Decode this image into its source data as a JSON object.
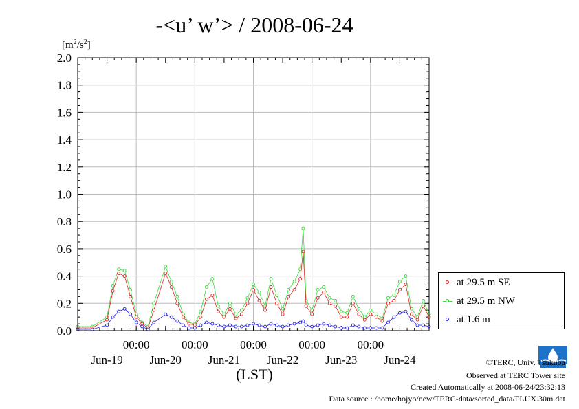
{
  "title": "-<u’ w’> / 2008-06-24",
  "y_unit_label_base": "[m",
  "y_unit_label_sup1": "2",
  "y_unit_label_mid": "/s",
  "y_unit_label_sup2": "2",
  "y_unit_label_end": "]",
  "xlabel": "(LST)",
  "credits": {
    "line1": "©TERC, Univ. Tsukuba",
    "line2": "Observed at TERC Tower site",
    "line3": "Created Automatically at 2008-06-24/23:32:13",
    "line4": "Data source : /home/hojyo/new/TERC-data/sorted_data/FLUX.30m.dat"
  },
  "legend": [
    {
      "label": "at 29.5 m SE",
      "color": "#e02020"
    },
    {
      "label": "at 29.5 m NW",
      "color": "#33dd33"
    },
    {
      "label": "at 1.6 m",
      "color": "#2020e0"
    }
  ],
  "chart_data": {
    "type": "line",
    "title": "-<u’ w’> / 2008-06-24",
    "xlabel": "(LST)",
    "ylabel": "[m2/s2]",
    "ylim": [
      0,
      2.0
    ],
    "yticks": [
      "0.0",
      "0.2",
      "0.4",
      "0.6",
      "0.8",
      "1.0",
      "1.2",
      "1.4",
      "1.6",
      "1.8",
      "2.0"
    ],
    "x_unit": "days since 2008-06-18 12:00 LST",
    "xlim": [
      0,
      6
    ],
    "xtick_top_labels": [
      "00:00",
      "00:00",
      "00:00",
      "00:00",
      "00:00"
    ],
    "xtick_bottom_labels": [
      "Jun-19",
      "Jun-20",
      "Jun-21",
      "Jun-22",
      "Jun-23",
      "Jun-24"
    ],
    "grid": true,
    "legend_position": "right",
    "series": [
      {
        "name": "at 29.5 m SE",
        "color": "#e02020",
        "x": [
          0,
          0.25,
          0.5,
          0.6,
          0.7,
          0.8,
          0.9,
          1.0,
          1.1,
          1.2,
          1.3,
          1.5,
          1.6,
          1.7,
          1.8,
          1.9,
          2.0,
          2.1,
          2.2,
          2.3,
          2.4,
          2.5,
          2.6,
          2.7,
          2.8,
          2.9,
          3.0,
          3.1,
          3.2,
          3.3,
          3.4,
          3.5,
          3.6,
          3.7,
          3.8,
          3.85,
          3.9,
          4.0,
          4.1,
          4.2,
          4.3,
          4.4,
          4.5,
          4.6,
          4.7,
          4.8,
          4.9,
          5.0,
          5.1,
          5.2,
          5.3,
          5.4,
          5.5,
          5.6,
          5.7,
          5.8,
          5.9,
          6.0
        ],
        "y": [
          0.02,
          0.02,
          0.08,
          0.29,
          0.42,
          0.4,
          0.25,
          0.1,
          0.05,
          0.02,
          0.15,
          0.42,
          0.32,
          0.2,
          0.1,
          0.05,
          0.04,
          0.1,
          0.23,
          0.26,
          0.14,
          0.1,
          0.16,
          0.09,
          0.12,
          0.2,
          0.3,
          0.22,
          0.15,
          0.32,
          0.2,
          0.12,
          0.25,
          0.3,
          0.38,
          0.58,
          0.18,
          0.12,
          0.24,
          0.28,
          0.2,
          0.18,
          0.1,
          0.1,
          0.2,
          0.12,
          0.08,
          0.12,
          0.1,
          0.07,
          0.2,
          0.22,
          0.3,
          0.34,
          0.12,
          0.08,
          0.18,
          0.1
        ]
      },
      {
        "name": "at 29.5 m NW",
        "color": "#33dd33",
        "x": [
          0,
          0.25,
          0.5,
          0.6,
          0.7,
          0.8,
          0.9,
          1.0,
          1.1,
          1.2,
          1.3,
          1.5,
          1.6,
          1.7,
          1.8,
          1.9,
          2.0,
          2.1,
          2.2,
          2.3,
          2.4,
          2.5,
          2.6,
          2.7,
          2.8,
          2.9,
          3.0,
          3.1,
          3.2,
          3.3,
          3.4,
          3.5,
          3.6,
          3.7,
          3.8,
          3.85,
          3.9,
          4.0,
          4.1,
          4.2,
          4.3,
          4.4,
          4.5,
          4.6,
          4.7,
          4.8,
          4.9,
          5.0,
          5.1,
          5.2,
          5.3,
          5.4,
          5.5,
          5.6,
          5.7,
          5.8,
          5.9,
          6.0
        ],
        "y": [
          0.03,
          0.03,
          0.1,
          0.33,
          0.45,
          0.44,
          0.3,
          0.12,
          0.06,
          0.03,
          0.2,
          0.47,
          0.36,
          0.25,
          0.12,
          0.06,
          0.05,
          0.14,
          0.32,
          0.38,
          0.18,
          0.12,
          0.2,
          0.12,
          0.15,
          0.24,
          0.34,
          0.28,
          0.18,
          0.38,
          0.26,
          0.16,
          0.3,
          0.36,
          0.45,
          0.75,
          0.22,
          0.15,
          0.3,
          0.32,
          0.24,
          0.22,
          0.14,
          0.13,
          0.25,
          0.16,
          0.1,
          0.15,
          0.12,
          0.09,
          0.24,
          0.26,
          0.36,
          0.4,
          0.16,
          0.1,
          0.22,
          0.12
        ]
      },
      {
        "name": "at 1.6 m",
        "color": "#2020e0",
        "x": [
          0,
          0.25,
          0.5,
          0.6,
          0.7,
          0.8,
          0.9,
          1.0,
          1.1,
          1.2,
          1.3,
          1.5,
          1.6,
          1.7,
          1.8,
          1.9,
          2.0,
          2.1,
          2.2,
          2.3,
          2.4,
          2.5,
          2.6,
          2.7,
          2.8,
          2.9,
          3.0,
          3.1,
          3.2,
          3.3,
          3.4,
          3.5,
          3.6,
          3.7,
          3.8,
          3.85,
          3.9,
          4.0,
          4.1,
          4.2,
          4.3,
          4.4,
          4.5,
          4.6,
          4.7,
          4.8,
          4.9,
          5.0,
          5.1,
          5.2,
          5.3,
          5.4,
          5.5,
          5.6,
          5.7,
          5.8,
          5.9,
          6.0
        ],
        "y": [
          0.01,
          0.01,
          0.04,
          0.1,
          0.14,
          0.16,
          0.12,
          0.06,
          0.03,
          0.01,
          0.06,
          0.12,
          0.1,
          0.07,
          0.04,
          0.02,
          0.02,
          0.04,
          0.06,
          0.05,
          0.04,
          0.03,
          0.04,
          0.03,
          0.03,
          0.04,
          0.05,
          0.04,
          0.03,
          0.05,
          0.04,
          0.03,
          0.04,
          0.05,
          0.06,
          0.07,
          0.04,
          0.03,
          0.04,
          0.05,
          0.04,
          0.03,
          0.02,
          0.02,
          0.04,
          0.03,
          0.02,
          0.02,
          0.02,
          0.02,
          0.06,
          0.1,
          0.13,
          0.14,
          0.08,
          0.04,
          0.04,
          0.03
        ]
      }
    ]
  }
}
